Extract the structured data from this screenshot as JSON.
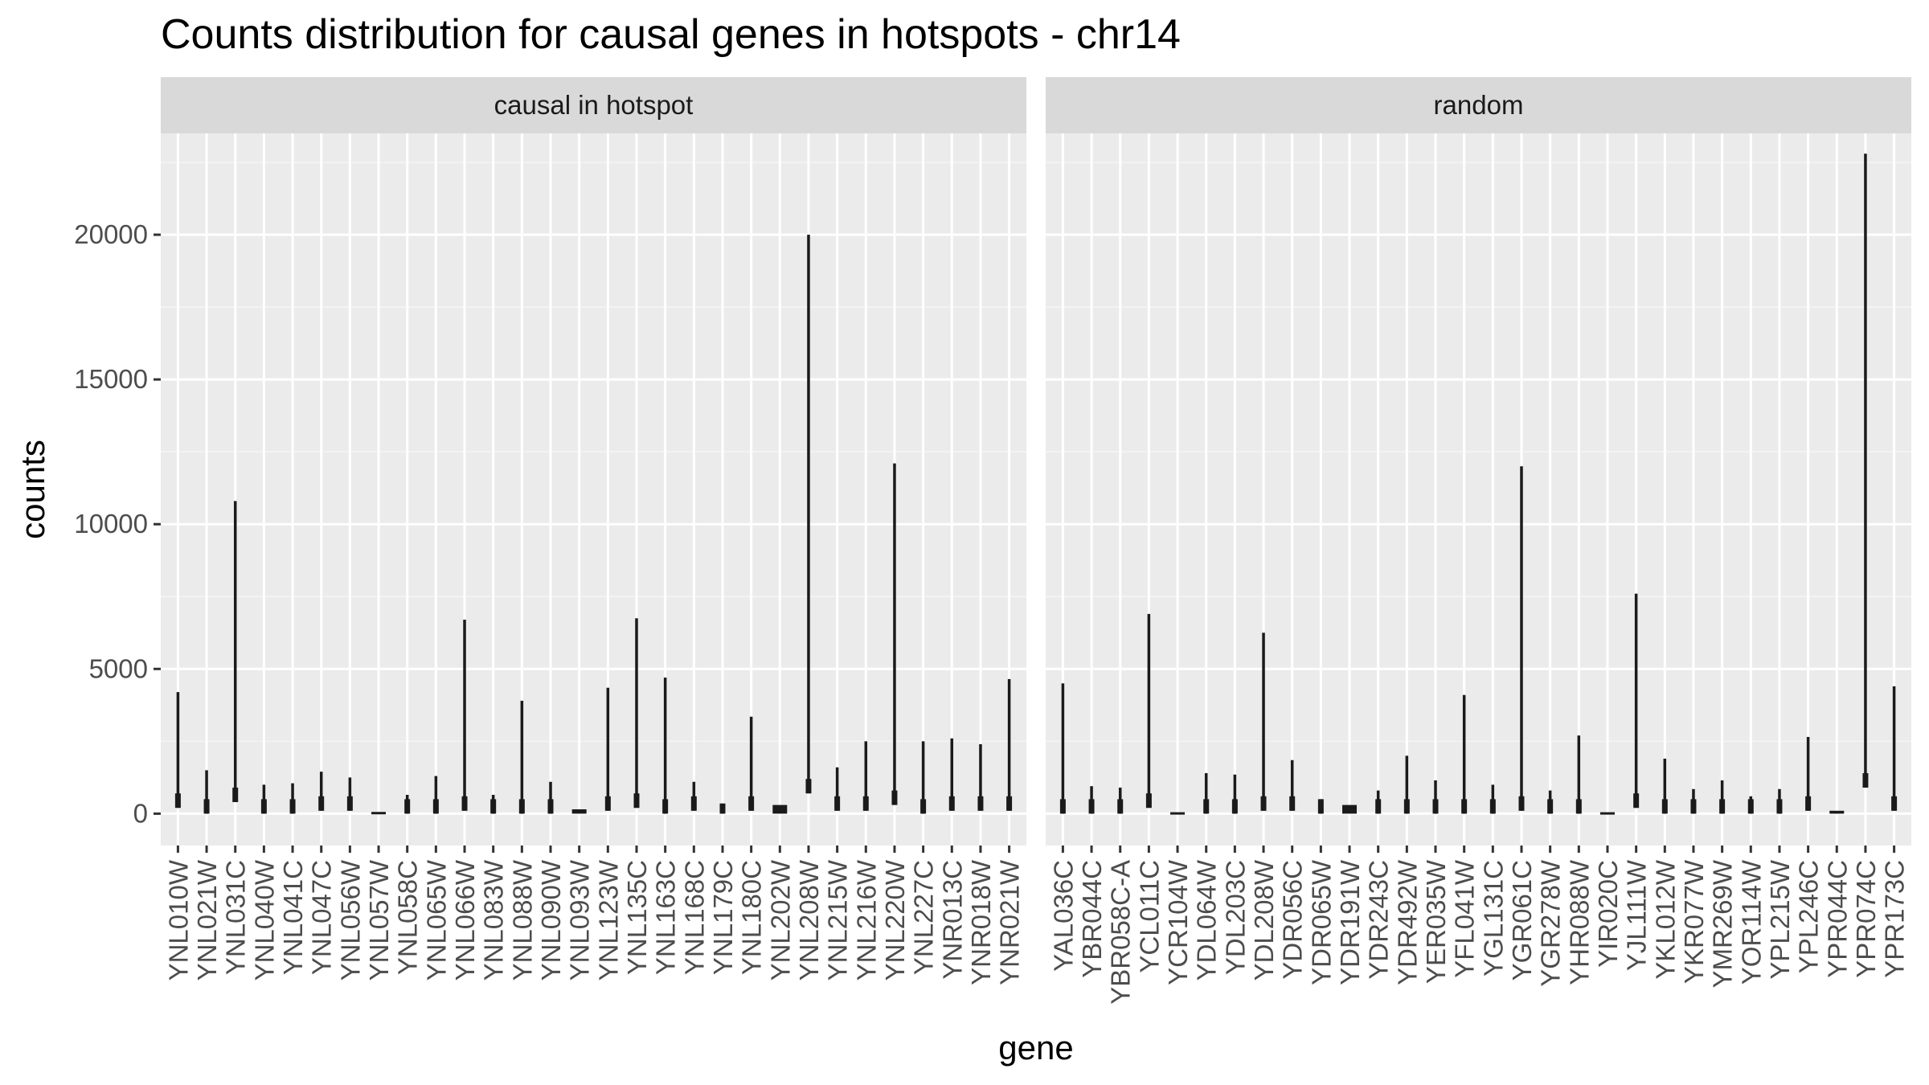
{
  "chart_data": {
    "type": "violin",
    "title": "Counts distribution for causal genes in hotspots - chr14",
    "xlabel": "gene",
    "ylabel": "counts",
    "ylim": [
      -1100,
      23500
    ],
    "yticks": [
      0,
      5000,
      10000,
      15000,
      20000
    ],
    "panels": [
      {
        "label": "causal in hotspot",
        "series": [
          {
            "gene": "YNL010W",
            "min": 200,
            "max": 4200
          },
          {
            "gene": "YNL021W",
            "min": 0,
            "max": 1500
          },
          {
            "gene": "YNL031C",
            "min": 400,
            "max": 10800
          },
          {
            "gene": "YNL040W",
            "min": 0,
            "max": 1000
          },
          {
            "gene": "YNL041C",
            "min": 0,
            "max": 1050
          },
          {
            "gene": "YNL047C",
            "min": 100,
            "max": 1450
          },
          {
            "gene": "YNL056W",
            "min": 100,
            "max": 1250
          },
          {
            "gene": "YNL057W",
            "min": 0,
            "max": 60
          },
          {
            "gene": "YNL058C",
            "min": 0,
            "max": 650
          },
          {
            "gene": "YNL065W",
            "min": 0,
            "max": 1300
          },
          {
            "gene": "YNL066W",
            "min": 100,
            "max": 6700
          },
          {
            "gene": "YNL083W",
            "min": 0,
            "max": 650
          },
          {
            "gene": "YNL088W",
            "min": 0,
            "max": 3900
          },
          {
            "gene": "YNL090W",
            "min": 0,
            "max": 1100
          },
          {
            "gene": "YNL093W",
            "min": 0,
            "max": 150
          },
          {
            "gene": "YNL123W",
            "min": 100,
            "max": 4350
          },
          {
            "gene": "YNL135C",
            "min": 200,
            "max": 6750
          },
          {
            "gene": "YNL163C",
            "min": 0,
            "max": 4700
          },
          {
            "gene": "YNL168C",
            "min": 100,
            "max": 1100
          },
          {
            "gene": "YNL179C",
            "min": 0,
            "max": 350
          },
          {
            "gene": "YNL180C",
            "min": 100,
            "max": 3350
          },
          {
            "gene": "YNL202W",
            "min": 0,
            "max": 300
          },
          {
            "gene": "YNL208W",
            "min": 700,
            "max": 20000
          },
          {
            "gene": "YNL215W",
            "min": 100,
            "max": 1600
          },
          {
            "gene": "YNL216W",
            "min": 100,
            "max": 2500
          },
          {
            "gene": "YNL220W",
            "min": 300,
            "max": 12100
          },
          {
            "gene": "YNL227C",
            "min": 0,
            "max": 2500
          },
          {
            "gene": "YNR013C",
            "min": 100,
            "max": 2600
          },
          {
            "gene": "YNR018W",
            "min": 100,
            "max": 2400
          },
          {
            "gene": "YNR021W",
            "min": 100,
            "max": 4650
          }
        ]
      },
      {
        "label": "random",
        "series": [
          {
            "gene": "YAL036C",
            "min": 0,
            "max": 4500
          },
          {
            "gene": "YBR044C",
            "min": 0,
            "max": 950
          },
          {
            "gene": "YBR058C-A",
            "min": 0,
            "max": 900
          },
          {
            "gene": "YCL011C",
            "min": 200,
            "max": 6900
          },
          {
            "gene": "YCR104W",
            "min": 0,
            "max": 50
          },
          {
            "gene": "YDL064W",
            "min": 0,
            "max": 1400
          },
          {
            "gene": "YDL203C",
            "min": 0,
            "max": 1350
          },
          {
            "gene": "YDL208W",
            "min": 100,
            "max": 6250
          },
          {
            "gene": "YDR056C",
            "min": 100,
            "max": 1850
          },
          {
            "gene": "YDR065W",
            "min": 0,
            "max": 500
          },
          {
            "gene": "YDR191W",
            "min": 0,
            "max": 300
          },
          {
            "gene": "YDR243C",
            "min": 0,
            "max": 800
          },
          {
            "gene": "YDR492W",
            "min": 0,
            "max": 2000
          },
          {
            "gene": "YER035W",
            "min": 0,
            "max": 1150
          },
          {
            "gene": "YFL041W",
            "min": 0,
            "max": 4100
          },
          {
            "gene": "YGL131C",
            "min": 0,
            "max": 1000
          },
          {
            "gene": "YGR061C",
            "min": 100,
            "max": 12000
          },
          {
            "gene": "YGR278W",
            "min": 0,
            "max": 800
          },
          {
            "gene": "YHR088W",
            "min": 0,
            "max": 2700
          },
          {
            "gene": "YIR020C",
            "min": 0,
            "max": 50
          },
          {
            "gene": "YJL111W",
            "min": 200,
            "max": 7600
          },
          {
            "gene": "YKL012W",
            "min": 0,
            "max": 1900
          },
          {
            "gene": "YKR077W",
            "min": 0,
            "max": 850
          },
          {
            "gene": "YMR269W",
            "min": 0,
            "max": 1150
          },
          {
            "gene": "YOR114W",
            "min": 0,
            "max": 600
          },
          {
            "gene": "YPL215W",
            "min": 0,
            "max": 850
          },
          {
            "gene": "YPL246C",
            "min": 100,
            "max": 2650
          },
          {
            "gene": "YPR044C",
            "min": 0,
            "max": 100
          },
          {
            "gene": "YPR074C",
            "min": 900,
            "max": 22800
          },
          {
            "gene": "YPR173C",
            "min": 100,
            "max": 4400
          }
        ]
      }
    ],
    "colors": {
      "panel_bg": "#ebebeb",
      "grid_major": "#ffffff",
      "strip_bg": "#d9d9d9",
      "violin": "#1a1a1a",
      "tick_text": "#4d4d4d"
    },
    "grid": true,
    "legend": "none"
  }
}
